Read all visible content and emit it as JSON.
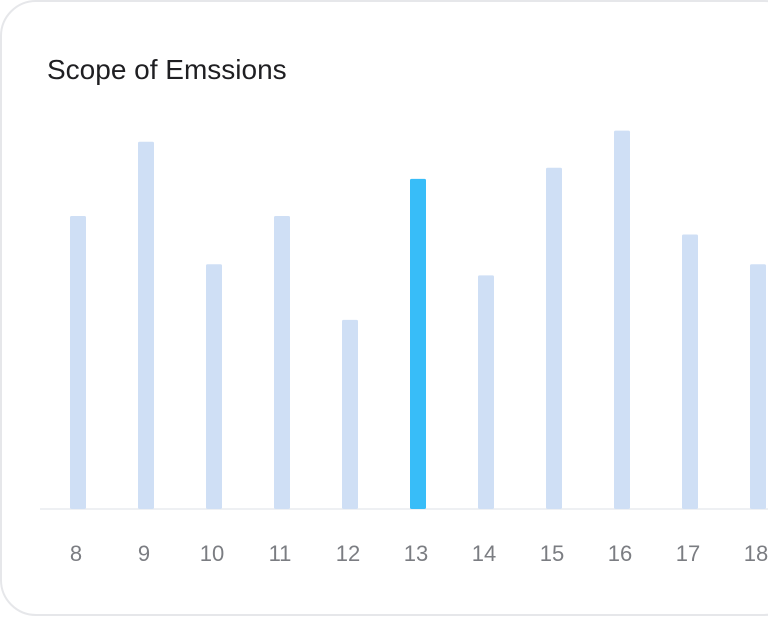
{
  "card": {
    "title": "Scope of Emssions"
  },
  "chart_data": {
    "type": "bar",
    "title": "Scope of Emssions",
    "categories": [
      "8",
      "9",
      "10",
      "11",
      "12",
      "13",
      "14",
      "15",
      "16",
      "17",
      "18"
    ],
    "values": [
      79,
      99,
      66,
      79,
      51,
      89,
      63,
      92,
      102,
      74,
      66
    ],
    "highlight_index": 5,
    "ylim": [
      0,
      110
    ],
    "grid": false,
    "colors": {
      "bar": "#cfdff5",
      "highlight": "#38bdf8",
      "baseline": "#eef0f3",
      "tick": "#7b7d82"
    }
  }
}
